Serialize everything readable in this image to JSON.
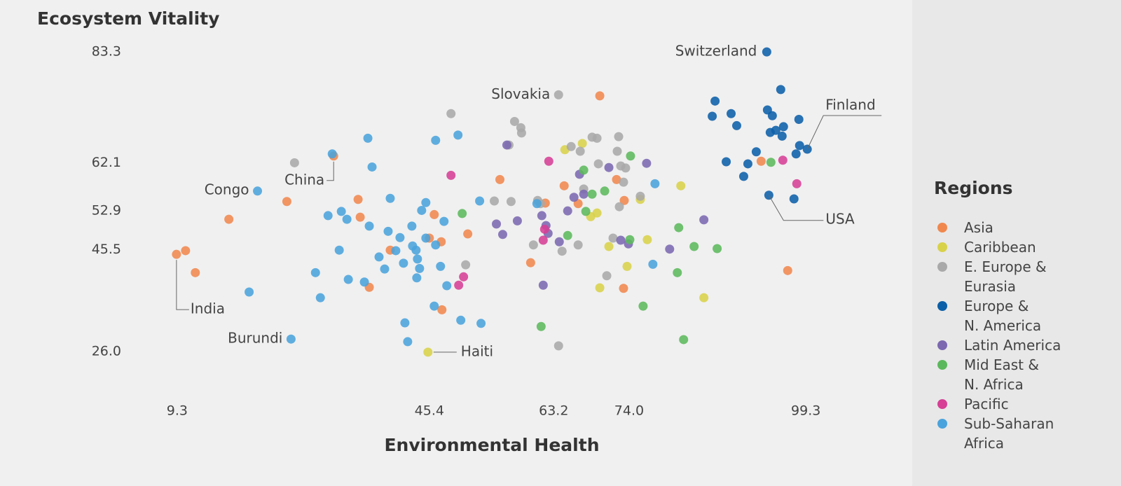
{
  "chart_data": {
    "type": "scatter",
    "y_label": "Ecosystem Vitality",
    "x_label": "Environmental Health",
    "legend_title": "Regions",
    "legend": "right",
    "grid": false,
    "xlim": [
      5,
      106
    ],
    "ylim": [
      22,
      88
    ],
    "xticks": [
      9.3,
      45.4,
      63.2,
      {
        "value": 74,
        "label": "74.0"
      },
      99.3
    ],
    "yticks": [
      83.3,
      62.1,
      52.9,
      45.5,
      {
        "value": 26,
        "label": "26.0"
      }
    ],
    "series": [
      {
        "name": "Asia",
        "color": "#f0884e",
        "x": [
          9.2,
          10.5,
          11.9,
          16.7,
          25.0,
          31.7,
          35.2,
          35.5,
          36.8,
          39.8,
          45.4,
          46.1,
          47.1,
          47.2,
          50.9,
          55.5,
          59.9,
          62.0,
          64.7,
          66.7,
          69.8,
          72.2,
          73.2,
          73.3,
          92.9,
          96.7
        ],
        "values": [
          44.6,
          45.3,
          41.1,
          51.3,
          54.7,
          63.4,
          55.1,
          51.7,
          38.3,
          45.4,
          47.7,
          52.2,
          47.0,
          34.0,
          48.5,
          58.9,
          43.0,
          54.4,
          57.7,
          54.3,
          74.9,
          58.9,
          38.1,
          54.9,
          62.4,
          41.5
        ]
      },
      {
        "name": "Caribbean",
        "color": "#d8d24a",
        "x": [
          45.2,
          64.8,
          67.3,
          68.5,
          69.4,
          69.8,
          71.1,
          73.7,
          75.6,
          76.6,
          81.4,
          84.7
        ],
        "values": [
          25.9,
          64.6,
          65.8,
          51.8,
          52.5,
          38.2,
          46.1,
          42.3,
          55.1,
          47.4,
          57.7,
          36.3
        ]
      },
      {
        "name": "E. Europe &\nEurasia",
        "color": "#a9a9a9",
        "x": [
          26.1,
          48.5,
          50.6,
          54.7,
          56.8,
          57.1,
          57.6,
          58.5,
          58.6,
          60.3,
          60.9,
          61.3,
          63.9,
          63.9,
          64.4,
          65.7,
          66.7,
          67.0,
          67.5,
          68.7,
          69.4,
          69.6,
          70.8,
          72.3,
          72.5,
          72.6,
          72.8,
          73.2,
          73.5,
          75.6,
          71.7
        ],
        "values": [
          62.1,
          71.5,
          42.6,
          54.8,
          65.5,
          54.7,
          70.0,
          68.8,
          67.8,
          46.4,
          54.9,
          54.3,
          75.1,
          27.1,
          45.2,
          65.2,
          46.4,
          64.3,
          57.1,
          67.0,
          66.8,
          61.9,
          40.5,
          64.3,
          67.1,
          53.7,
          61.5,
          58.4,
          61.1,
          55.7,
          47.7
        ]
      },
      {
        "name": "Europe &\nN. America",
        "color": "#0b5fa8",
        "x": [
          93.7,
          95.7,
          86.3,
          85.9,
          88.6,
          89.4,
          93.8,
          94.5,
          96.1,
          98.3,
          94.2,
          95.0,
          95.9,
          98.4,
          99.5,
          97.9,
          92.2,
          87.9,
          91.0,
          90.4,
          94.0,
          97.6
        ],
        "values": [
          83.3,
          76.1,
          73.9,
          71.0,
          71.5,
          69.2,
          72.2,
          71.1,
          69.0,
          70.4,
          67.9,
          68.3,
          67.2,
          65.4,
          64.7,
          63.8,
          64.2,
          62.3,
          61.9,
          59.5,
          55.9,
          55.2
        ]
      },
      {
        "name": "Latin America",
        "color": "#7b68b0",
        "x": [
          55.0,
          55.9,
          58.0,
          56.5,
          61.5,
          62.1,
          62.4,
          61.7,
          64.0,
          65.2,
          66.1,
          66.9,
          67.5,
          71.1,
          73.9,
          76.5,
          79.8,
          84.7,
          72.8
        ],
        "values": [
          50.4,
          48.4,
          51.0,
          65.5,
          52.0,
          50.1,
          48.6,
          38.7,
          47.0,
          52.9,
          55.5,
          59.9,
          56.1,
          61.2,
          46.6,
          62.0,
          45.6,
          51.2,
          47.3
        ]
      },
      {
        "name": "Mid East &\nN. Africa",
        "color": "#5cb85c",
        "x": [
          50.1,
          61.4,
          65.2,
          67.5,
          68.7,
          70.5,
          67.8,
          74.2,
          74.1,
          76.0,
          80.9,
          81.1,
          81.8,
          83.3,
          86.6,
          94.3
        ],
        "values": [
          52.4,
          30.8,
          48.2,
          60.7,
          56.1,
          56.7,
          52.8,
          63.4,
          47.4,
          34.7,
          41.1,
          49.7,
          28.3,
          46.1,
          45.7,
          62.2
        ]
      },
      {
        "name": "Pacific",
        "color": "#d63f95",
        "x": [
          48.5,
          49.6,
          50.3,
          62.5,
          61.9,
          61.7,
          96.0,
          98.0
        ],
        "values": [
          59.7,
          38.7,
          40.3,
          62.4,
          49.4,
          47.3,
          62.6,
          58.1
        ]
      },
      {
        "name": "Sub-Saharan\nAfrica",
        "color": "#4aa3dc",
        "x": [
          20.8,
          19.6,
          25.6,
          29.1,
          29.8,
          30.9,
          32.5,
          32.8,
          33.6,
          33.8,
          36.1,
          36.6,
          36.8,
          37.2,
          38.2,
          39.0,
          39.5,
          39.8,
          40.6,
          41.2,
          41.7,
          41.9,
          42.3,
          42.9,
          43.0,
          43.5,
          43.7,
          44.0,
          43.6,
          44.3,
          44.9,
          44.9,
          46.1,
          46.3,
          46.3,
          47.0,
          47.5,
          47.9,
          49.5,
          49.9,
          52.6,
          52.8,
          60.8,
          77.4,
          77.7,
          31.5
        ],
        "values": [
          56.7,
          37.4,
          28.4,
          41.1,
          36.3,
          52.0,
          45.4,
          52.8,
          51.3,
          39.8,
          39.3,
          66.8,
          50.0,
          61.3,
          44.1,
          41.8,
          49.0,
          55.3,
          45.3,
          47.8,
          42.9,
          31.5,
          27.9,
          50.0,
          46.2,
          45.4,
          43.7,
          41.9,
          40.1,
          53.0,
          54.5,
          47.7,
          34.7,
          66.4,
          46.4,
          42.3,
          50.9,
          38.6,
          67.4,
          32.0,
          54.8,
          31.4,
          54.3,
          42.7,
          58.1,
          63.8
        ]
      }
    ],
    "annotations": [
      {
        "text": "Switzerland",
        "x": 93.7,
        "y": 83.3
      },
      {
        "text": "Slovakia",
        "x": 63.9,
        "y": 75.1
      },
      {
        "text": "Finland",
        "x": 99.5,
        "y": 64.7
      },
      {
        "text": "USA",
        "x": 94.0,
        "y": 55.9
      },
      {
        "text": "India",
        "x": 9.2,
        "y": 44.6
      },
      {
        "text": "Burundi",
        "x": 25.6,
        "y": 28.4
      },
      {
        "text": "Congo",
        "x": 20.8,
        "y": 56.7
      },
      {
        "text": "China",
        "x": 31.7,
        "y": 63.4
      },
      {
        "text": "Haiti",
        "x": 45.2,
        "y": 25.9
      }
    ]
  }
}
